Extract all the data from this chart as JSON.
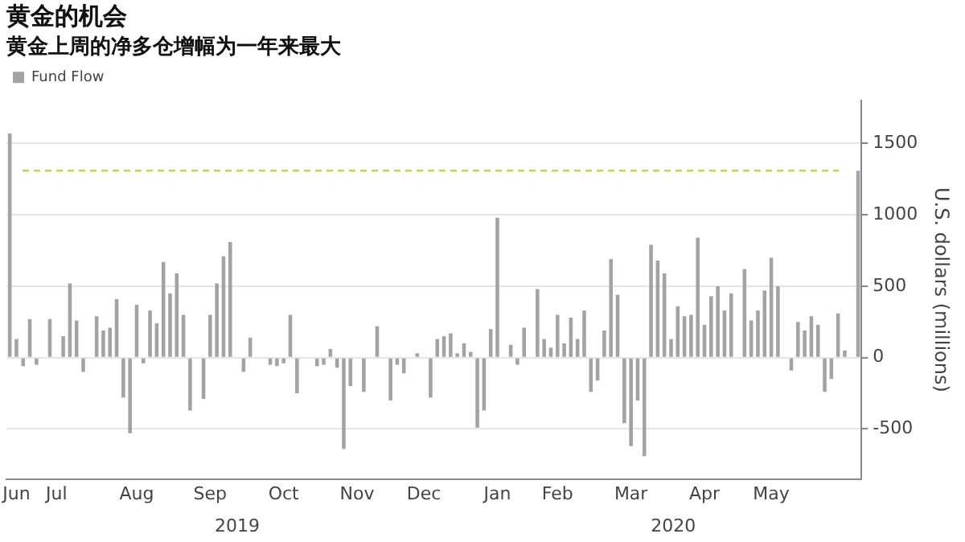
{
  "chart_data": {
    "type": "bar",
    "title": "黄金的机会",
    "subtitle": "黄金上周的净多仓增幅为一年来最大",
    "ylabel": "U.S. dollars (millions)",
    "categories": [
      null,
      "Jun",
      null,
      null,
      null,
      null,
      null,
      "Jul",
      null,
      null,
      null,
      null,
      null,
      null,
      null,
      null,
      null,
      null,
      null,
      "Aug",
      null,
      null,
      null,
      null,
      null,
      null,
      null,
      null,
      null,
      null,
      "Sep",
      null,
      null,
      null,
      null,
      null,
      null,
      null,
      null,
      null,
      null,
      "Oct",
      null,
      null,
      null,
      null,
      null,
      null,
      null,
      null,
      null,
      null,
      "Nov",
      null,
      null,
      null,
      null,
      null,
      null,
      null,
      null,
      null,
      "Dec",
      null,
      null,
      null,
      null,
      null,
      null,
      null,
      null,
      null,
      null,
      "Jan",
      null,
      null,
      null,
      null,
      null,
      null,
      null,
      null,
      "Feb",
      null,
      null,
      null,
      null,
      null,
      null,
      null,
      null,
      null,
      null,
      "Mar",
      null,
      null,
      null,
      null,
      null,
      null,
      null,
      null,
      null,
      null,
      "Apr",
      null,
      null,
      null,
      null,
      null,
      null,
      null,
      null,
      null,
      "May",
      null,
      null,
      null,
      null,
      null,
      null,
      null,
      null,
      null,
      null,
      null,
      null,
      null
    ],
    "series": [
      {
        "name": "Fund Flow",
        "color": "#a3a3a3",
        "values": [
          1570,
          130,
          -60,
          270,
          -50,
          0,
          270,
          0,
          150,
          520,
          260,
          -100,
          0,
          290,
          190,
          210,
          410,
          -280,
          -530,
          370,
          -40,
          330,
          240,
          670,
          450,
          590,
          300,
          -370,
          0,
          -290,
          300,
          520,
          710,
          810,
          0,
          -100,
          140,
          0,
          0,
          -50,
          -60,
          -40,
          300,
          -250,
          0,
          0,
          -60,
          -50,
          60,
          -70,
          -640,
          -200,
          0,
          -240,
          0,
          220,
          0,
          -300,
          -50,
          -110,
          0,
          30,
          0,
          -280,
          130,
          150,
          170,
          30,
          100,
          40,
          -490,
          -370,
          200,
          980,
          0,
          90,
          -50,
          210,
          0,
          480,
          130,
          70,
          300,
          100,
          280,
          130,
          330,
          -240,
          -160,
          190,
          690,
          440,
          -460,
          -620,
          -300,
          -690,
          790,
          680,
          590,
          130,
          360,
          290,
          300,
          840,
          230,
          430,
          500,
          330,
          450,
          0,
          620,
          260,
          330,
          470,
          700,
          500,
          0,
          -90,
          250,
          190,
          290,
          230,
          -240,
          -150,
          310,
          50,
          0,
          1310
        ]
      }
    ],
    "ylim": [
      -850,
      1800
    ],
    "yticks": [
      -500,
      0,
      500,
      1000,
      1500
    ],
    "grid": "y",
    "legend": "top left",
    "ref_lines": [
      {
        "axis": "y",
        "value": 1310,
        "color": "#c8d44a",
        "line_style": "dashed"
      }
    ],
    "annotations": [
      "2019",
      "2020"
    ]
  }
}
